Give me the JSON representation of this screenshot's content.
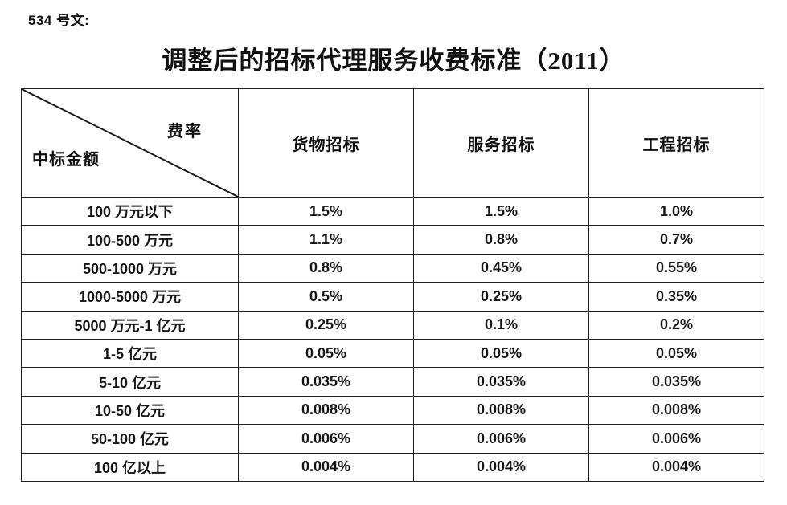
{
  "document": {
    "doc_number": "534 号文:",
    "title": "调整后的招标代理服务收费标准（2011）"
  },
  "table": {
    "corner": {
      "rate_label": "费率",
      "amount_label": "中标金额"
    },
    "columns": [
      "货物招标",
      "服务招标",
      "工程招标"
    ],
    "rows": [
      {
        "label": "100 万元以下",
        "values": [
          "1.5%",
          "1.5%",
          "1.0%"
        ]
      },
      {
        "label": "100-500 万元",
        "values": [
          "1.1%",
          "0.8%",
          "0.7%"
        ]
      },
      {
        "label": "500-1000 万元",
        "values": [
          "0.8%",
          "0.45%",
          "0.55%"
        ]
      },
      {
        "label": "1000-5000 万元",
        "values": [
          "0.5%",
          "0.25%",
          "0.35%"
        ]
      },
      {
        "label": "5000 万元-1 亿元",
        "values": [
          "0.25%",
          "0.1%",
          "0.2%"
        ]
      },
      {
        "label": "1-5 亿元",
        "values": [
          "0.05%",
          "0.05%",
          "0.05%"
        ]
      },
      {
        "label": "5-10 亿元",
        "values": [
          "0.035%",
          "0.035%",
          "0.035%"
        ]
      },
      {
        "label": "10-50 亿元",
        "values": [
          "0.008%",
          "0.008%",
          "0.008%"
        ]
      },
      {
        "label": "50-100 亿元",
        "values": [
          "0.006%",
          "0.006%",
          "0.006%"
        ]
      },
      {
        "label": "100 亿以上",
        "values": [
          "0.004%",
          "0.004%",
          "0.004%"
        ]
      }
    ]
  },
  "colors": {
    "text": "#1a1a1a",
    "border": "#1f1f1f",
    "background": "#ffffff"
  }
}
